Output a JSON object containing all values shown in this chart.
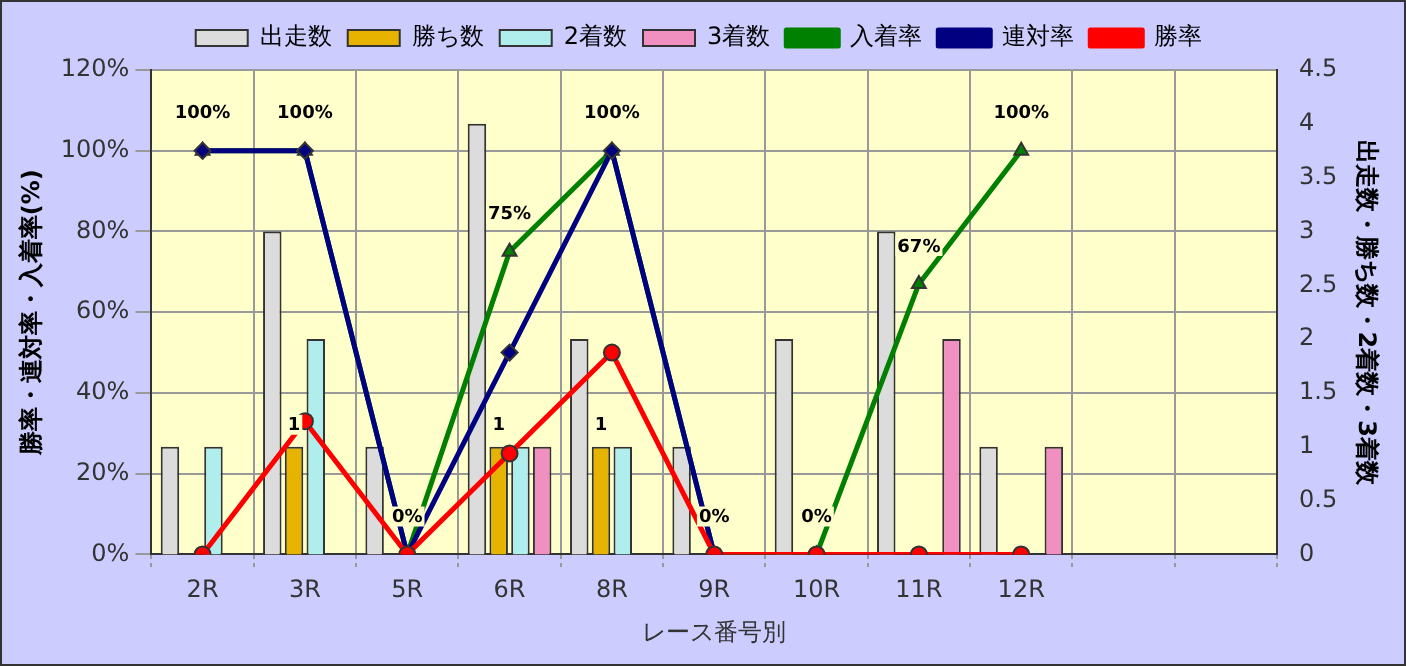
{
  "chart_data": {
    "type": "bar",
    "xlabel": "レース番号別",
    "ylabel": "勝率・連対率・入着率(%)",
    "y2label": "出走数・勝ち数・2着数・3着数",
    "categories": [
      "2R",
      "3R",
      "5R",
      "6R",
      "8R",
      "9R",
      "10R",
      "11R",
      "12R",
      null,
      null
    ],
    "series": [
      {
        "name": "出走数",
        "axis": "y2",
        "color": "#dcdcdc",
        "values": [
          1,
          3,
          1,
          4,
          2,
          1,
          2,
          3,
          1,
          null,
          null
        ]
      },
      {
        "name": "勝ち数",
        "axis": "y2",
        "color": "#e6b400",
        "values": [
          0,
          1,
          0,
          1,
          1,
          0,
          0,
          0,
          0,
          null,
          null
        ],
        "value_labels": [
          null,
          "1",
          null,
          "1",
          "1",
          null,
          null,
          null,
          null,
          null,
          null
        ]
      },
      {
        "name": "2着数",
        "axis": "y2",
        "color": "#b0eeee",
        "values": [
          1,
          2,
          0,
          1,
          1,
          0,
          0,
          0,
          0,
          null,
          null
        ]
      },
      {
        "name": "3着数",
        "axis": "y2",
        "color": "#f090c0",
        "values": [
          0,
          0,
          0,
          1,
          0,
          0,
          0,
          2,
          1,
          null,
          null
        ]
      },
      {
        "name": "入着率",
        "type": "line",
        "marker": "triangle",
        "color": "#008000",
        "values": [
          100,
          100,
          0,
          75,
          100,
          0,
          0,
          67,
          100,
          null,
          null
        ],
        "value_labels": [
          "100%",
          "100%",
          "0%",
          "75%",
          "100%",
          "0%",
          "0%",
          "67%",
          "100%",
          null,
          null
        ]
      },
      {
        "name": "連対率",
        "type": "line",
        "marker": "diamond",
        "color": "#000080",
        "values": [
          100,
          100,
          0,
          50,
          100,
          0,
          null,
          null,
          null,
          null,
          null
        ]
      },
      {
        "name": "勝率",
        "type": "line",
        "marker": "circle",
        "color": "#ff0000",
        "values": [
          0,
          33,
          0,
          25,
          50,
          0,
          0,
          0,
          0,
          null,
          null
        ]
      }
    ],
    "ylim": [
      0,
      120
    ],
    "yticks": [
      {
        "value": 0,
        "label": "0%"
      },
      {
        "value": 20,
        "label": "20%"
      },
      {
        "value": 40,
        "label": "40%"
      },
      {
        "value": 60,
        "label": "60%"
      },
      {
        "value": 80,
        "label": "80%"
      },
      {
        "value": 100,
        "label": "100%"
      },
      {
        "value": 120,
        "label": "120%"
      }
    ],
    "y2lim": [
      0,
      4.5
    ],
    "y2ticks": [
      0,
      0.5,
      1,
      1.5,
      2,
      2.5,
      3,
      3.5,
      4,
      4.5
    ],
    "grid": true,
    "legend": "top"
  }
}
